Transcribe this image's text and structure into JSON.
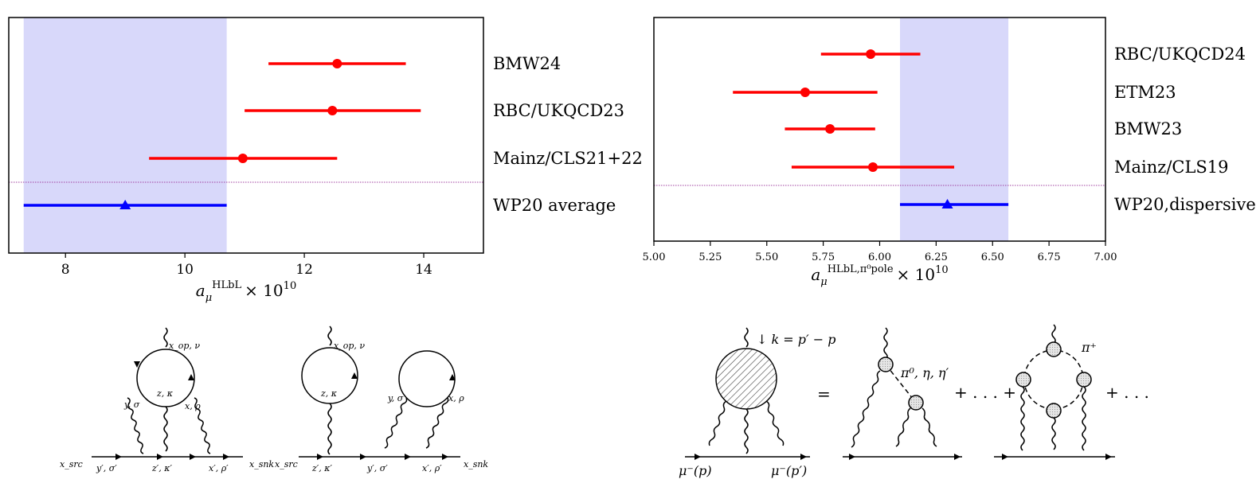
{
  "chart_data": [
    {
      "type": "scatter",
      "title": "",
      "xlabel_base": "a",
      "xlabel_sub": "μ",
      "xlabel_sup": "HLbL",
      "xlabel_tail": "× 10",
      "xlabel_exp": "10",
      "xlim": [
        7.05,
        15.0
      ],
      "xticks": [
        8,
        10,
        12,
        14
      ],
      "band": [
        7.3,
        10.7
      ],
      "separator_between": [
        2,
        3
      ],
      "series": [
        {
          "name": "BMW24",
          "value": 12.55,
          "lo": 11.4,
          "hi": 13.7,
          "marker": "circle",
          "color": "#ff0000"
        },
        {
          "name": "RBC/UKQCD23",
          "value": 12.47,
          "lo": 11.0,
          "hi": 13.95,
          "marker": "circle",
          "color": "#ff0000"
        },
        {
          "name": "Mainz/CLS21+22",
          "value": 10.97,
          "lo": 9.4,
          "hi": 12.55,
          "marker": "circle",
          "color": "#ff0000"
        },
        {
          "name": "WP20 average",
          "value": 9.0,
          "lo": 7.3,
          "hi": 10.7,
          "marker": "triangle",
          "color": "#0000ff"
        }
      ]
    },
    {
      "type": "scatter",
      "title": "",
      "xlabel_base": "a",
      "xlabel_sub": "μ",
      "xlabel_sup": "HLbL,π⁰pole",
      "xlabel_tail": "× 10",
      "xlabel_exp": "10",
      "xlim": [
        5.0,
        7.0
      ],
      "xticks": [
        5.0,
        5.25,
        5.5,
        5.75,
        6.0,
        6.25,
        6.5,
        6.75,
        7.0
      ],
      "xtick_labels": [
        "5.00",
        "5.25",
        "5.50",
        "5.75",
        "6.00",
        "6.25",
        "6.50",
        "6.75",
        "7.00"
      ],
      "band": [
        6.09,
        6.57
      ],
      "separator_between": [
        3,
        4
      ],
      "series": [
        {
          "name": "RBC/UKQCD24",
          "value": 5.96,
          "lo": 5.74,
          "hi": 6.18,
          "marker": "circle",
          "color": "#ff0000"
        },
        {
          "name": "ETM23",
          "value": 5.67,
          "lo": 5.35,
          "hi": 5.99,
          "marker": "circle",
          "color": "#ff0000"
        },
        {
          "name": "BMW23",
          "value": 5.78,
          "lo": 5.58,
          "hi": 5.98,
          "marker": "circle",
          "color": "#ff0000"
        },
        {
          "name": "Mainz/CLS19",
          "value": 5.97,
          "lo": 5.61,
          "hi": 6.33,
          "marker": "circle",
          "color": "#ff0000"
        },
        {
          "name": "WP20,dispersive",
          "value": 6.3,
          "lo": 6.09,
          "hi": 6.57,
          "marker": "triangle",
          "color": "#0000ff"
        }
      ]
    }
  ],
  "colors": {
    "band": "#d8d8fa",
    "point": "#ff0000",
    "average": "#0000ff",
    "separator": "#a040a0"
  },
  "diagram1": {
    "x_op_nu": "x_op, ν",
    "z_kappa": "z, κ",
    "y_sigma": "y, σ",
    "x_rho": "x, ρ",
    "x_src": "x_src",
    "y_sigma_p": "y′, σ′",
    "z_kappa_p": "z′, κ′",
    "x_rho_p": "x′, ρ′",
    "x_snk": "x_snk"
  },
  "diagram2": {
    "x_op_nu": "x_op, ν",
    "z_kappa": "z, κ",
    "y_sigma": "y, σ",
    "x_rho": "x, ρ",
    "x_src": "x_src",
    "z_kappa_p": "z′, κ′",
    "y_sigma_p": "y′, σ′",
    "x_rho_p": "x′, ρ′",
    "x_snk": "x_snk"
  },
  "diagram3": {
    "k_label": "↓ k = p′ − p",
    "mu_in": "μ⁻(p)",
    "mu_out": "μ⁻(p′)",
    "equals": "=",
    "pseudo": "π⁰, η, η′",
    "plus_dots_plus": "+ . . . +",
    "pi_plus": "π⁺",
    "plus_dots": "+ . . ."
  }
}
